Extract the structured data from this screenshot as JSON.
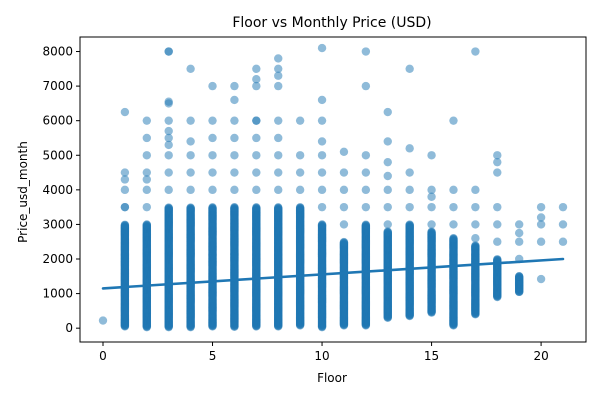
{
  "chart_data": {
    "type": "scatter",
    "title": "Floor vs Monthly Price (USD)",
    "xlabel": "Floor",
    "ylabel": "Price_usd_month",
    "xlim": [
      -1.05,
      22.05
    ],
    "ylim": [
      -400,
      8420
    ],
    "xticks": [
      0,
      5,
      10,
      15,
      20
    ],
    "yticks": [
      0,
      1000,
      2000,
      3000,
      4000,
      5000,
      6000,
      7000,
      8000
    ],
    "grid": false,
    "legend": "none",
    "colors": {
      "points": "#1f77b4",
      "trend": "#1f77b4"
    },
    "trendline": {
      "x": [
        0,
        21
      ],
      "y": [
        1150,
        2000
      ]
    },
    "columns": [
      {
        "x": 0,
        "min": 220,
        "max": 220,
        "outliers": [
          220
        ]
      },
      {
        "x": 1,
        "min": 50,
        "max": 3000,
        "outliers": [
          3500,
          3500,
          4000,
          4300,
          4500,
          6250
        ]
      },
      {
        "x": 2,
        "min": 30,
        "max": 3000,
        "outliers": [
          3500,
          4000,
          4300,
          4500,
          5000,
          5500,
          6000
        ]
      },
      {
        "x": 3,
        "min": 30,
        "max": 3500,
        "outliers": [
          4000,
          4500,
          5000,
          5300,
          5500,
          5700,
          6000,
          6500,
          6550,
          8000,
          8000
        ]
      },
      {
        "x": 4,
        "min": 30,
        "max": 3500,
        "outliers": [
          4000,
          4500,
          5000,
          5400,
          6000,
          7500
        ]
      },
      {
        "x": 5,
        "min": 50,
        "max": 3500,
        "outliers": [
          4000,
          4500,
          5000,
          5500,
          6000,
          7000
        ]
      },
      {
        "x": 6,
        "min": 40,
        "max": 3500,
        "outliers": [
          4000,
          4500,
          5000,
          5500,
          6000,
          6600,
          7000
        ]
      },
      {
        "x": 7,
        "min": 50,
        "max": 3500,
        "outliers": [
          4000,
          4500,
          5000,
          5500,
          6000,
          6000,
          7000,
          7200,
          7500
        ]
      },
      {
        "x": 8,
        "min": 50,
        "max": 3500,
        "outliers": [
          4000,
          4500,
          5000,
          5500,
          6000,
          7000,
          7300,
          7500,
          7800
        ]
      },
      {
        "x": 9,
        "min": 80,
        "max": 3500,
        "outliers": [
          4000,
          4500,
          5000,
          6000
        ]
      },
      {
        "x": 10,
        "min": 30,
        "max": 3000,
        "outliers": [
          3500,
          4000,
          4500,
          5000,
          5400,
          6000,
          6600,
          8100
        ]
      },
      {
        "x": 11,
        "min": 80,
        "max": 2500,
        "outliers": [
          3000,
          3500,
          4000,
          4500,
          5100
        ]
      },
      {
        "x": 12,
        "min": 80,
        "max": 3000,
        "outliers": [
          3500,
          4000,
          4500,
          5000,
          7000,
          8000
        ]
      },
      {
        "x": 13,
        "min": 300,
        "max": 2800,
        "outliers": [
          3000,
          3500,
          4000,
          4400,
          4800,
          5400,
          6250
        ]
      },
      {
        "x": 14,
        "min": 350,
        "max": 3000,
        "outliers": [
          3500,
          4000,
          4500,
          5200,
          7500
        ]
      },
      {
        "x": 15,
        "min": 450,
        "max": 2800,
        "outliers": [
          3000,
          3500,
          3800,
          4000,
          5000
        ]
      },
      {
        "x": 16,
        "min": 80,
        "max": 2600,
        "outliers": [
          3000,
          3500,
          4000,
          6000
        ]
      },
      {
        "x": 17,
        "min": 400,
        "max": 2400,
        "outliers": [
          2600,
          3000,
          3500,
          4000,
          8000
        ]
      },
      {
        "x": 18,
        "min": 900,
        "max": 2000,
        "outliers": [
          2500,
          3000,
          3500,
          4500,
          4800,
          5000
        ]
      },
      {
        "x": 19,
        "min": 1050,
        "max": 1500,
        "outliers": [
          1050,
          1500,
          2000,
          2500,
          2750,
          3000
        ]
      },
      {
        "x": 20,
        "min": 1420,
        "max": 1420,
        "outliers": [
          1420,
          2500,
          3000,
          3200,
          3500
        ]
      },
      {
        "x": 21,
        "min": 2500,
        "max": 2500,
        "outliers": [
          2500,
          3000,
          3500
        ]
      }
    ]
  }
}
